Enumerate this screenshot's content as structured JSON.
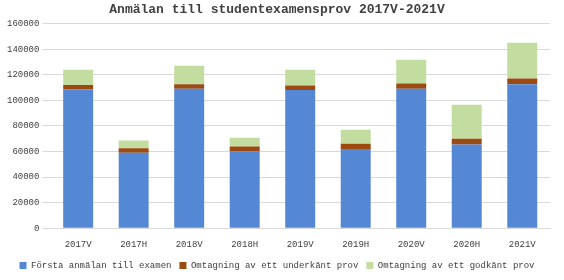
{
  "chart_data": {
    "type": "bar",
    "title": "Anmälan till studentexamensprov 2017V-2021V",
    "categories": [
      "2017V",
      "2017H",
      "2018V",
      "2018H",
      "2019V",
      "2019H",
      "2020V",
      "2020H",
      "2021V"
    ],
    "series": [
      {
        "name": "Första anmälan till examen",
        "color": "#5588d4",
        "values": [
          108500,
          59000,
          109000,
          60000,
          108000,
          62000,
          109000,
          65500,
          112500
        ]
      },
      {
        "name": "Omtagning av ett underkänt prov",
        "color": "#9c4a10",
        "values": [
          3500,
          3500,
          3500,
          3800,
          3500,
          4000,
          4200,
          4500,
          4500
        ]
      },
      {
        "name": "Omtagning av ett godkänt prov",
        "color": "#c3dca0",
        "values": [
          12000,
          6000,
          14500,
          7000,
          12500,
          11000,
          18500,
          26500,
          28000
        ]
      }
    ],
    "stacked": true,
    "ylim": [
      0,
      160000
    ],
    "yticks": [
      0,
      20000,
      40000,
      60000,
      80000,
      100000,
      120000,
      140000,
      160000
    ],
    "grid": true,
    "legend": "bottom"
  }
}
